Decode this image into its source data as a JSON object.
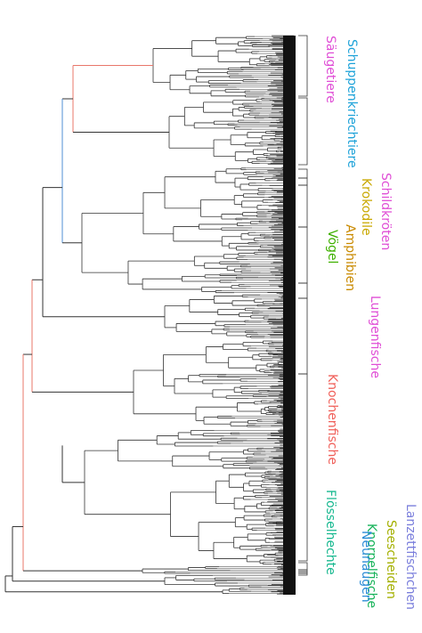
{
  "colors": {
    "branch": "#333333",
    "tip_block": "#111111",
    "red_branch": "#e8776a",
    "blue_branch": "#4f8fd6"
  },
  "clades": [
    {
      "name": "Säugetiere",
      "color": "#e04fd6"
    },
    {
      "name": "Schuppenkriechtiere",
      "color": "#1fa3d9"
    },
    {
      "name": "Schildkröten",
      "color": "#e04fd6"
    },
    {
      "name": "Krokodile",
      "color": "#c9a800"
    },
    {
      "name": "Amphibien",
      "color": "#c98a00"
    },
    {
      "name": "Vögel",
      "color": "#3fb000"
    },
    {
      "name": "Lungenfische",
      "color": "#e04fd6"
    },
    {
      "name": "Knochenfische",
      "color": "#f0605a"
    },
    {
      "name": "Flösselhechte",
      "color": "#18b890"
    },
    {
      "name": "Knorpelfische",
      "color": "#18b35a"
    },
    {
      "name": "Neunaugen",
      "color": "#2b8cd6"
    },
    {
      "name": "Seescheiden",
      "color": "#a4b000"
    },
    {
      "name": "Lanzettfischchen",
      "color": "#7b7fdc"
    }
  ]
}
